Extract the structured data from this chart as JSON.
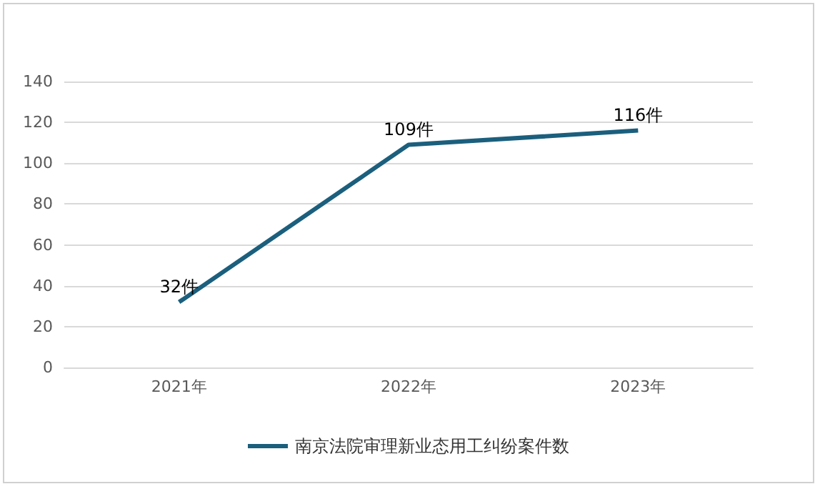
{
  "chart_data": {
    "type": "line",
    "categories": [
      "2021年",
      "2022年",
      "2023年"
    ],
    "series": [
      {
        "name": "南京法院审理新业态用工纠纷案件数",
        "color": "#1b5f7d",
        "values": [
          32,
          109,
          116
        ],
        "value_labels": [
          "32件",
          "109件",
          "116件"
        ]
      }
    ],
    "ylim": [
      0,
      140
    ],
    "yticks": [
      0,
      20,
      40,
      60,
      80,
      100,
      120,
      140
    ],
    "grid": "y",
    "legend": "bottom",
    "marker": "none"
  }
}
